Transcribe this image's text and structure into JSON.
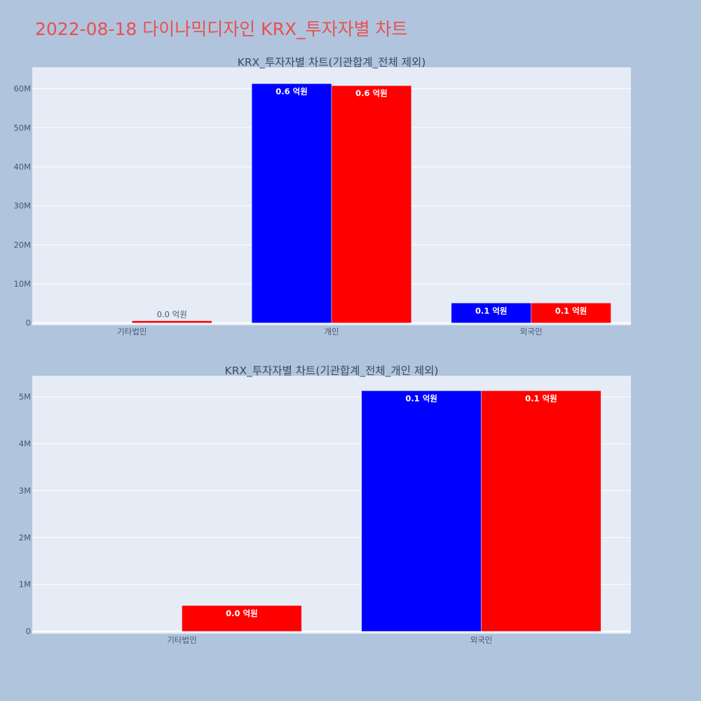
{
  "page_title": "2022-08-18 다이나믹디자인 KRX_투자자별 차트",
  "colors": {
    "page_bg": "#b0c4de",
    "plot_bg": "#e5ecf6",
    "title": "#e8504f",
    "series_1": "#0000ff",
    "series_2": "#ff0000"
  },
  "chart_data": [
    {
      "type": "bar",
      "title": "KRX_투자자별 차트(기관합계_전체 제외)",
      "categories": [
        "기타법인",
        "개인",
        "외국인"
      ],
      "series": [
        {
          "values": [
            0,
            61300000,
            5100000
          ],
          "labels": [
            "",
            "0.6 억원",
            "0.1 억원"
          ],
          "color": "#0000ff"
        },
        {
          "values": [
            550000,
            60800000,
            5100000
          ],
          "labels": [
            "0.0 억원",
            "0.6 억원",
            "0.1 억원"
          ],
          "color": "#ff0000"
        }
      ],
      "ylim": [
        -600000,
        65500000
      ],
      "yticks": [
        0,
        10000000,
        20000000,
        30000000,
        40000000,
        50000000,
        60000000
      ],
      "ytick_labels": [
        "0",
        "10M",
        "20M",
        "30M",
        "40M",
        "50M",
        "60M"
      ],
      "grid": true,
      "xlabel": "",
      "ylabel": ""
    },
    {
      "type": "bar",
      "title": "KRX_투자자별 차트(기관합계_전체_개인 제외)",
      "categories": [
        "기타법인",
        "외국인"
      ],
      "series": [
        {
          "values": [
            0,
            5130000
          ],
          "labels": [
            "",
            "0.1 억원"
          ],
          "color": "#0000ff"
        },
        {
          "values": [
            550000,
            5130000
          ],
          "labels": [
            "0.0 억원",
            "0.1 억원"
          ],
          "color": "#ff0000"
        }
      ],
      "ylim": [
        -50000,
        5450000
      ],
      "yticks": [
        0,
        1000000,
        2000000,
        3000000,
        4000000,
        5000000
      ],
      "ytick_labels": [
        "0",
        "1M",
        "2M",
        "3M",
        "4M",
        "5M"
      ],
      "grid": true,
      "xlabel": "",
      "ylabel": ""
    }
  ]
}
